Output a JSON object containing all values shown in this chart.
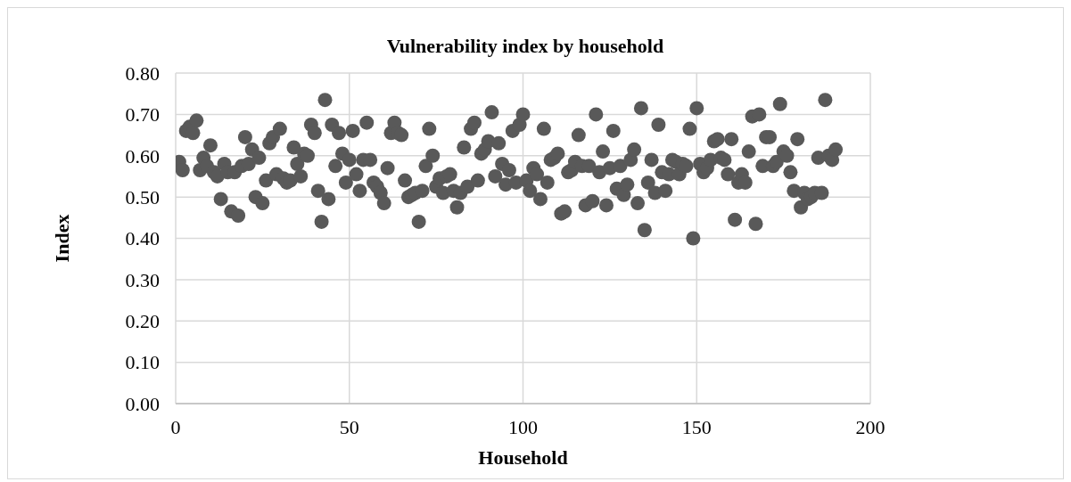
{
  "chart_data": {
    "type": "scatter",
    "title": "Vulnerability index by household",
    "xlabel": "Household",
    "ylabel": "Index",
    "xlim": [
      0,
      200
    ],
    "xticks": [
      0,
      50,
      100,
      150,
      200
    ],
    "ylim": [
      0,
      0.8
    ],
    "yticks": [
      {
        "value": 0,
        "label": "0.00"
      },
      {
        "value": 0.1,
        "label": "0.10"
      },
      {
        "value": 0.2,
        "label": "0.20"
      },
      {
        "value": 0.3,
        "label": "0.30"
      },
      {
        "value": 0.4,
        "label": "0.40"
      },
      {
        "value": 0.5,
        "label": "0.50"
      },
      {
        "value": 0.6,
        "label": "0.60"
      },
      {
        "value": 0.7,
        "label": "0.70"
      },
      {
        "value": 0.8,
        "label": "0.80"
      }
    ],
    "grid": true,
    "marker": "circle",
    "series": [
      {
        "color": "#595959",
        "x": [
          1,
          2,
          3,
          4,
          5,
          6,
          7,
          8,
          9,
          10,
          11,
          12,
          13,
          14,
          15,
          16,
          17,
          18,
          19,
          20,
          21,
          22,
          23,
          24,
          25,
          26,
          27,
          28,
          29,
          30,
          31,
          32,
          33,
          34,
          35,
          36,
          37,
          38,
          39,
          40,
          41,
          42,
          43,
          44,
          45,
          46,
          47,
          48,
          49,
          50,
          51,
          52,
          53,
          54,
          55,
          56,
          57,
          58,
          59,
          60,
          61,
          62,
          63,
          64,
          65,
          66,
          67,
          68,
          69,
          70,
          71,
          72,
          73,
          74,
          75,
          76,
          77,
          78,
          79,
          80,
          81,
          82,
          83,
          84,
          85,
          86,
          87,
          88,
          89,
          90,
          91,
          92,
          93,
          94,
          95,
          96,
          97,
          98,
          99,
          100,
          101,
          102,
          103,
          104,
          105,
          106,
          107,
          108,
          109,
          110,
          111,
          112,
          113,
          114,
          115,
          116,
          117,
          118,
          119,
          120,
          121,
          122,
          123,
          124,
          125,
          126,
          127,
          128,
          129,
          130,
          131,
          132,
          133,
          134,
          135,
          136,
          137,
          138,
          139,
          140,
          141,
          142,
          143,
          144,
          145,
          146,
          147,
          148,
          149,
          150,
          151,
          152,
          153,
          154,
          155,
          156,
          157,
          158,
          159,
          160,
          161,
          162,
          163,
          164,
          165,
          166,
          167,
          168,
          169,
          170,
          171,
          172,
          173,
          174,
          175,
          176,
          177,
          178,
          179,
          180,
          181,
          182,
          183,
          184,
          185,
          186,
          187,
          188,
          189,
          190
        ],
        "values": [
          0.585,
          0.565,
          0.66,
          0.67,
          0.655,
          0.685,
          0.565,
          0.595,
          0.575,
          0.625,
          0.56,
          0.55,
          0.495,
          0.58,
          0.56,
          0.465,
          0.56,
          0.455,
          0.575,
          0.645,
          0.58,
          0.615,
          0.5,
          0.595,
          0.485,
          0.54,
          0.63,
          0.645,
          0.555,
          0.665,
          0.545,
          0.535,
          0.54,
          0.62,
          0.58,
          0.55,
          0.605,
          0.6,
          0.675,
          0.655,
          0.515,
          0.44,
          0.735,
          0.495,
          0.675,
          0.575,
          0.655,
          0.605,
          0.535,
          0.59,
          0.66,
          0.555,
          0.515,
          0.59,
          0.68,
          0.59,
          0.535,
          0.525,
          0.51,
          0.485,
          0.57,
          0.655,
          0.68,
          0.655,
          0.65,
          0.54,
          0.5,
          0.505,
          0.51,
          0.44,
          0.515,
          0.575,
          0.665,
          0.6,
          0.525,
          0.545,
          0.51,
          0.55,
          0.555,
          0.515,
          0.475,
          0.51,
          0.62,
          0.525,
          0.665,
          0.68,
          0.54,
          0.605,
          0.615,
          0.635,
          0.705,
          0.55,
          0.63,
          0.58,
          0.53,
          0.565,
          0.66,
          0.535,
          0.675,
          0.7,
          0.54,
          0.515,
          0.57,
          0.555,
          0.495,
          0.665,
          0.535,
          0.59,
          0.595,
          0.605,
          0.46,
          0.465,
          0.56,
          0.565,
          0.585,
          0.65,
          0.575,
          0.48,
          0.575,
          0.49,
          0.7,
          0.56,
          0.61,
          0.48,
          0.57,
          0.66,
          0.52,
          0.575,
          0.505,
          0.53,
          0.59,
          0.615,
          0.485,
          0.715,
          0.42,
          0.535,
          0.59,
          0.51,
          0.675,
          0.56,
          0.515,
          0.555,
          0.59,
          0.585,
          0.555,
          0.58,
          0.575,
          0.665,
          0.4,
          0.715,
          0.58,
          0.56,
          0.57,
          0.59,
          0.635,
          0.64,
          0.595,
          0.59,
          0.555,
          0.64,
          0.445,
          0.535,
          0.555,
          0.535,
          0.61,
          0.695,
          0.435,
          0.7,
          0.575,
          0.645,
          0.645,
          0.575,
          0.585,
          0.725,
          0.61,
          0.6,
          0.56,
          0.515,
          0.64,
          0.475,
          0.51,
          0.495,
          0.5,
          0.51,
          0.595,
          0.51,
          0.735,
          0.6,
          0.59,
          0.615
        ]
      }
    ]
  }
}
